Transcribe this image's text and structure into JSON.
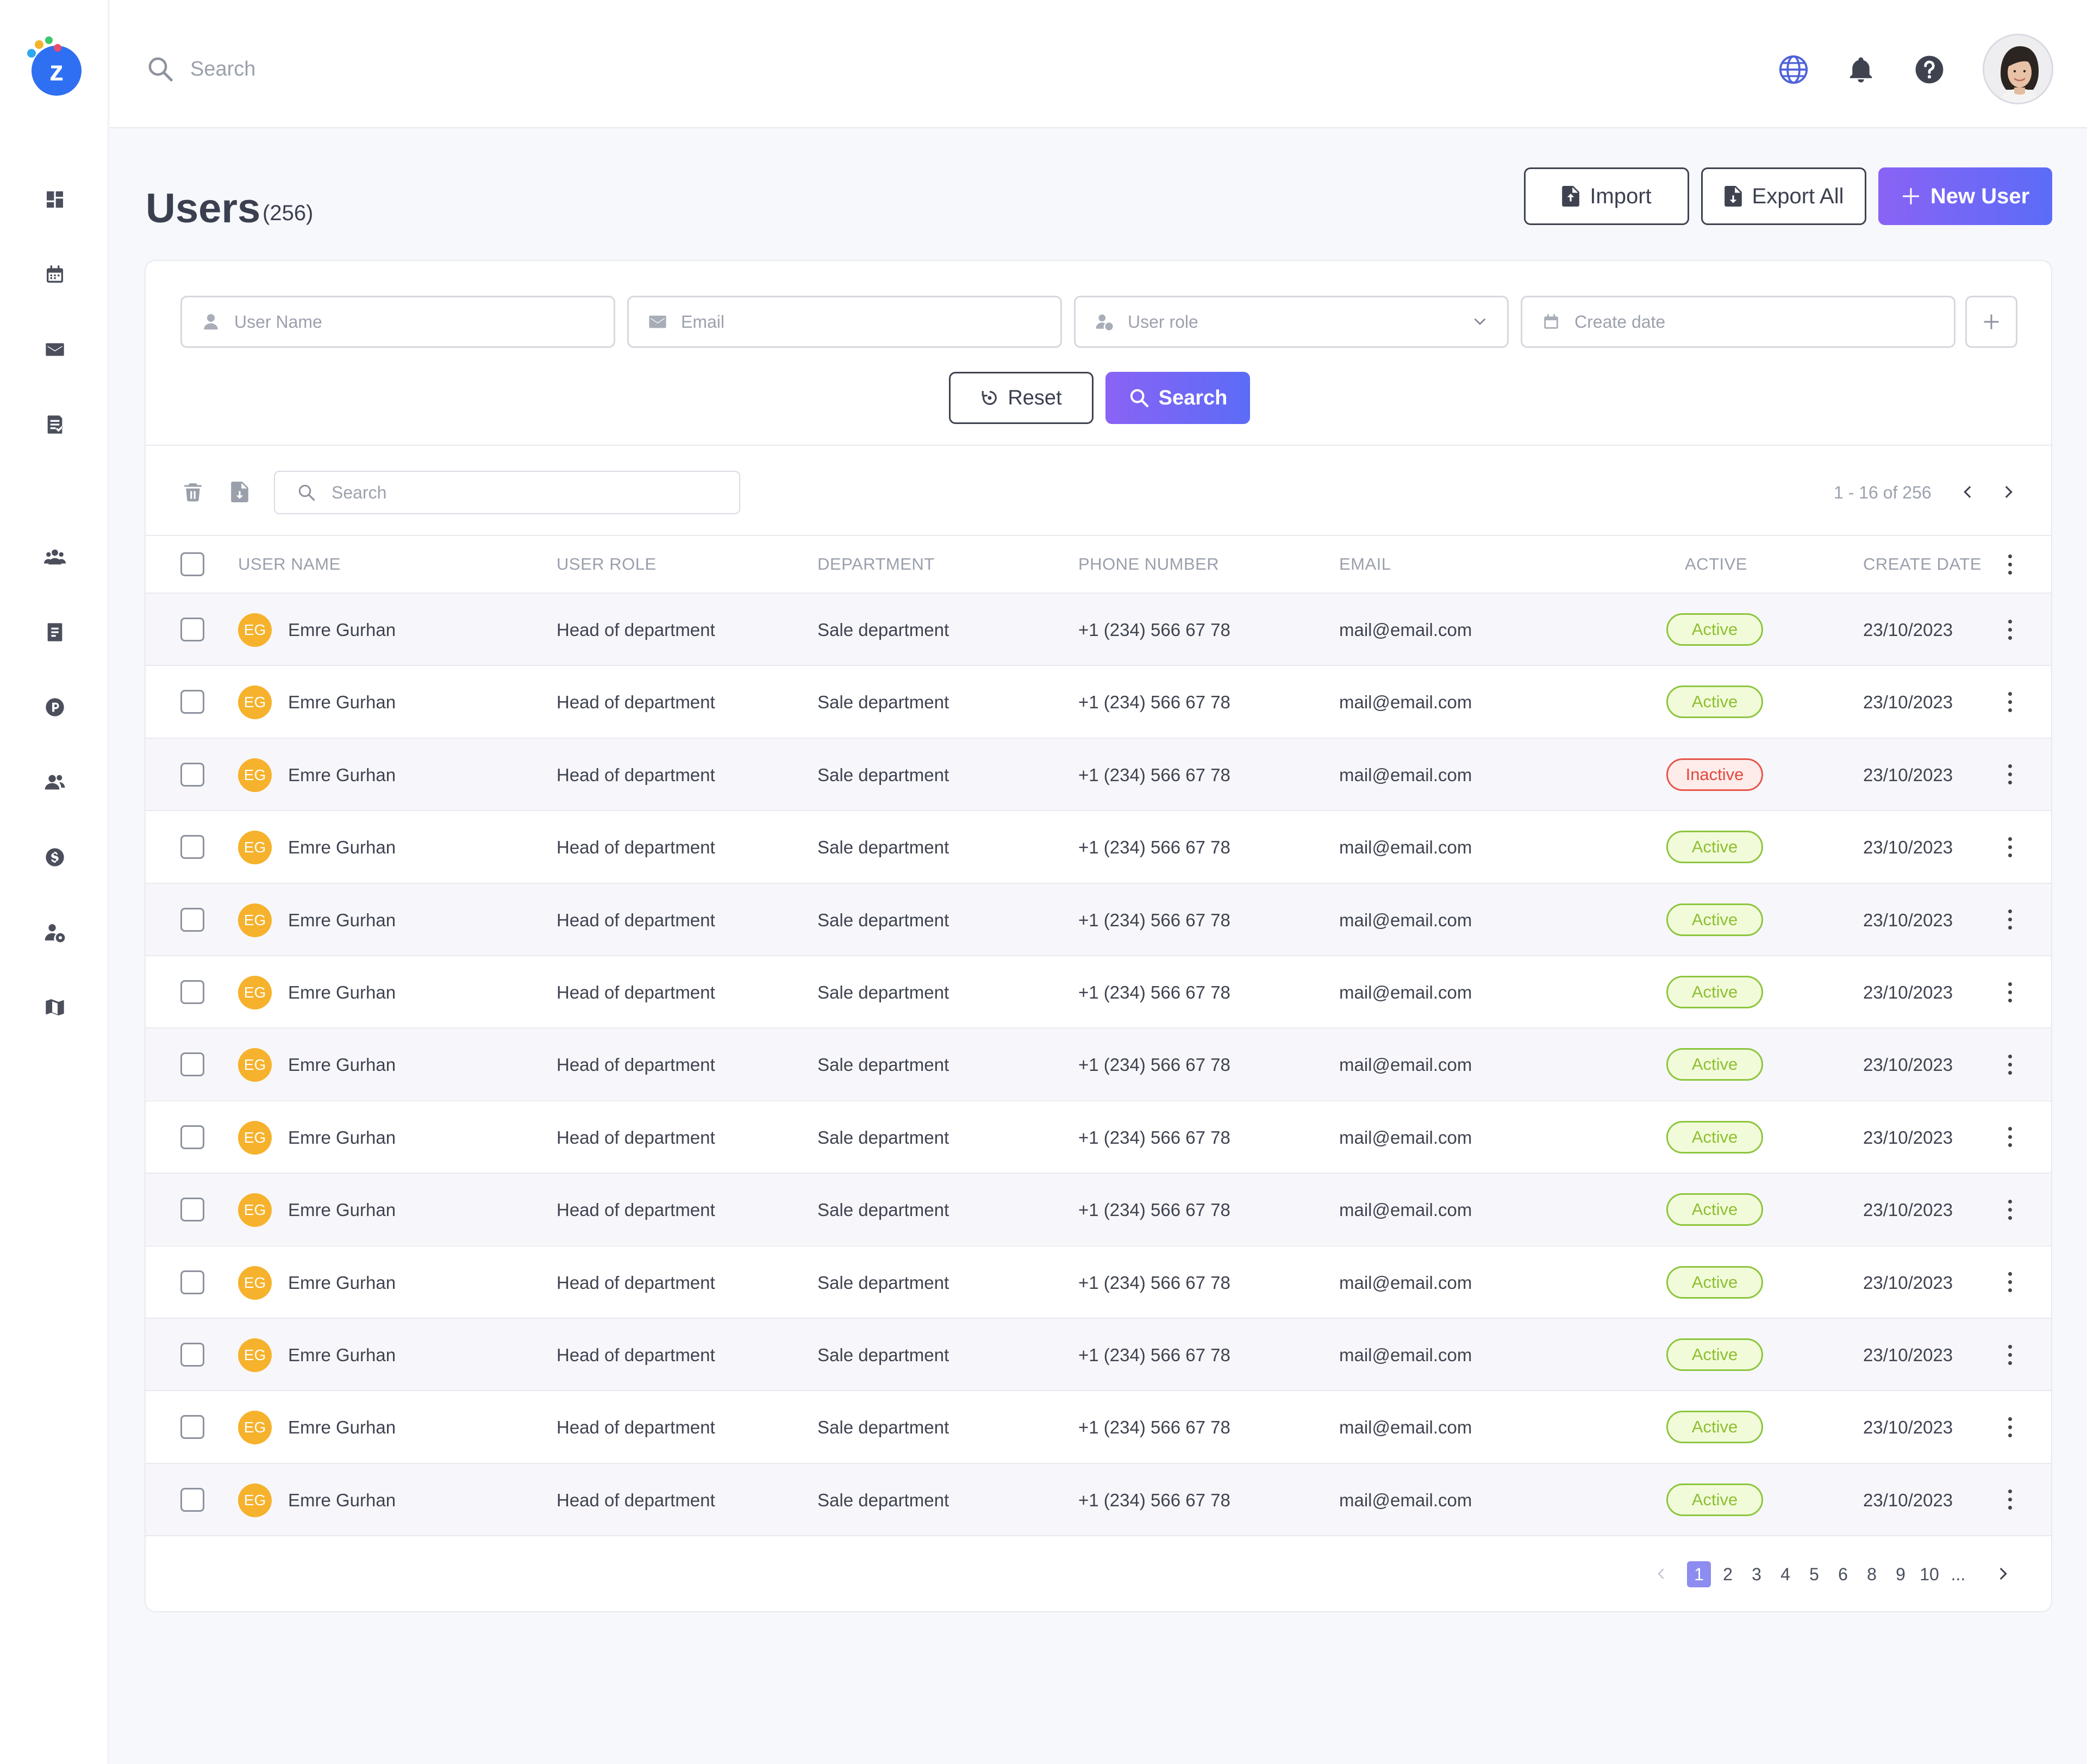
{
  "header": {
    "search_placeholder": "Search",
    "icons": [
      "globe-icon",
      "bell-icon",
      "help-icon"
    ]
  },
  "sidebar": {
    "items": [
      {
        "icon": "dashboard-icon"
      },
      {
        "icon": "calendar-icon"
      },
      {
        "icon": "mail-icon"
      },
      {
        "icon": "tasks-icon"
      },
      {
        "icon": "users-icon"
      },
      {
        "icon": "document-icon"
      },
      {
        "icon": "parking-icon"
      },
      {
        "icon": "contacts-icon"
      },
      {
        "icon": "dollar-icon"
      },
      {
        "icon": "user-settings-icon"
      },
      {
        "icon": "map-icon"
      }
    ]
  },
  "page": {
    "title": "Users",
    "count": "(256)",
    "import_label": "Import",
    "export_label": "Export All",
    "new_user_label": "New User"
  },
  "filters": {
    "user_name_placeholder": "User Name",
    "email_placeholder": "Email",
    "user_role_placeholder": "User role",
    "create_date_placeholder": "Create date",
    "reset_label": "Reset",
    "search_label": "Search"
  },
  "toolbar": {
    "search_placeholder": "Search",
    "range": "1 - 16 of 256"
  },
  "table": {
    "columns": [
      "USER NAME",
      "USER ROLE",
      "DEPARTMENT",
      "PHONE NUMBER",
      "EMAIL",
      "ACTIVE",
      "CREATE DATE"
    ],
    "rows": [
      {
        "initials": "EG",
        "name": "Emre Gurhan",
        "role": "Head of department",
        "department": "Sale department",
        "phone": "+1 (234) 566 67 78",
        "email": "mail@email.com",
        "status": "Active",
        "date": "23/10/2023"
      },
      {
        "initials": "EG",
        "name": "Emre Gurhan",
        "role": "Head of department",
        "department": "Sale department",
        "phone": "+1 (234) 566 67 78",
        "email": "mail@email.com",
        "status": "Active",
        "date": "23/10/2023"
      },
      {
        "initials": "EG",
        "name": "Emre Gurhan",
        "role": "Head of department",
        "department": "Sale department",
        "phone": "+1 (234) 566 67 78",
        "email": "mail@email.com",
        "status": "Inactive",
        "date": "23/10/2023"
      },
      {
        "initials": "EG",
        "name": "Emre Gurhan",
        "role": "Head of department",
        "department": "Sale department",
        "phone": "+1 (234) 566 67 78",
        "email": "mail@email.com",
        "status": "Active",
        "date": "23/10/2023"
      },
      {
        "initials": "EG",
        "name": "Emre Gurhan",
        "role": "Head of department",
        "department": "Sale department",
        "phone": "+1 (234) 566 67 78",
        "email": "mail@email.com",
        "status": "Active",
        "date": "23/10/2023"
      },
      {
        "initials": "EG",
        "name": "Emre Gurhan",
        "role": "Head of department",
        "department": "Sale department",
        "phone": "+1 (234) 566 67 78",
        "email": "mail@email.com",
        "status": "Active",
        "date": "23/10/2023"
      },
      {
        "initials": "EG",
        "name": "Emre Gurhan",
        "role": "Head of department",
        "department": "Sale department",
        "phone": "+1 (234) 566 67 78",
        "email": "mail@email.com",
        "status": "Active",
        "date": "23/10/2023"
      },
      {
        "initials": "EG",
        "name": "Emre Gurhan",
        "role": "Head of department",
        "department": "Sale department",
        "phone": "+1 (234) 566 67 78",
        "email": "mail@email.com",
        "status": "Active",
        "date": "23/10/2023"
      },
      {
        "initials": "EG",
        "name": "Emre Gurhan",
        "role": "Head of department",
        "department": "Sale department",
        "phone": "+1 (234) 566 67 78",
        "email": "mail@email.com",
        "status": "Active",
        "date": "23/10/2023"
      },
      {
        "initials": "EG",
        "name": "Emre Gurhan",
        "role": "Head of department",
        "department": "Sale department",
        "phone": "+1 (234) 566 67 78",
        "email": "mail@email.com",
        "status": "Active",
        "date": "23/10/2023"
      },
      {
        "initials": "EG",
        "name": "Emre Gurhan",
        "role": "Head of department",
        "department": "Sale department",
        "phone": "+1 (234) 566 67 78",
        "email": "mail@email.com",
        "status": "Active",
        "date": "23/10/2023"
      },
      {
        "initials": "EG",
        "name": "Emre Gurhan",
        "role": "Head of department",
        "department": "Sale department",
        "phone": "+1 (234) 566 67 78",
        "email": "mail@email.com",
        "status": "Active",
        "date": "23/10/2023"
      },
      {
        "initials": "EG",
        "name": "Emre Gurhan",
        "role": "Head of department",
        "department": "Sale department",
        "phone": "+1 (234) 566 67 78",
        "email": "mail@email.com",
        "status": "Active",
        "date": "23/10/2023"
      }
    ]
  },
  "pagination": {
    "pages": [
      "1",
      "2",
      "3",
      "4",
      "5",
      "6",
      "8",
      "9",
      "10",
      "..."
    ],
    "current": "1"
  },
  "colors": {
    "accent": "#7b66f6",
    "active_badge": "#8cc63f",
    "inactive_badge": "#e8554b",
    "avatar_initials_bg": "#f6b22d"
  }
}
